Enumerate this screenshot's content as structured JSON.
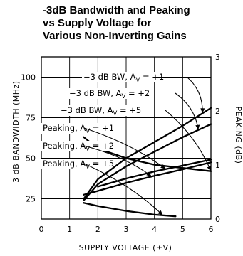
{
  "chart_data": {
    "type": "line",
    "title": [
      "-3dB Bandwidth and Peaking",
      "vs Supply Voltage for",
      "Various Non-Inverting Gains"
    ],
    "xlabel": "SUPPLY VOLTAGE (±V)",
    "ylabel": "−3 dB BANDWIDTH (MHz)",
    "y2label": "PEAKING (dB)",
    "xlim": [
      0,
      6
    ],
    "ylim": [
      12.5,
      112.5
    ],
    "y2lim": [
      0,
      3
    ],
    "xticks": [
      "0",
      "1",
      "2",
      "3",
      "4",
      "5",
      "6"
    ],
    "yticks": [
      "25",
      "50",
      "75",
      "100"
    ],
    "y2ticks": [
      "0",
      "1",
      "2",
      "3"
    ],
    "grid": true,
    "series": [
      {
        "name": "−3 dB BW, AV = +1",
        "axis": "left",
        "x": [
          1.5,
          2,
          3,
          4,
          5,
          6
        ],
        "y": [
          25,
          37,
          50,
          60,
          70,
          81
        ]
      },
      {
        "name": "−3 dB BW, AV = +2",
        "axis": "left",
        "x": [
          1.5,
          2,
          3,
          4,
          5,
          6
        ],
        "y": [
          24,
          34,
          45,
          54,
          63,
          71
        ]
      },
      {
        "name": "−3 dB BW, AV = +5",
        "axis": "left",
        "x": [
          1.5,
          2,
          3,
          4,
          5,
          6
        ],
        "y": [
          63,
          56,
          50,
          46,
          44,
          42
        ]
      },
      {
        "name": "Peaking, AV = +1",
        "axis": "right",
        "x": [
          2,
          3,
          4,
          5,
          6
        ],
        "y": [
          0.6,
          0.75,
          0.88,
          0.99,
          1.1
        ]
      },
      {
        "name": "Peaking, AV = +2",
        "axis": "right",
        "x": [
          1.5,
          2,
          3,
          4,
          5,
          6
        ],
        "y": [
          0.45,
          0.52,
          0.67,
          0.8,
          0.92,
          1.05
        ]
      },
      {
        "name": "Peaking, AV = +5",
        "axis": "right",
        "x": [
          1.5,
          2,
          3,
          4,
          4.75
        ],
        "y": [
          0.3,
          0.24,
          0.15,
          0.08,
          0.05
        ]
      }
    ],
    "annotations": [
      {
        "text": "−3 dB BW, A",
        "sub": "V",
        "rest": " = +1",
        "series": 0,
        "target_x": 5.7
      },
      {
        "text": "−3 dB BW, A",
        "sub": "V",
        "rest": " = +2",
        "series": 1,
        "target_x": 5.55
      },
      {
        "text": "−3 dB BW, A",
        "sub": "V",
        "rest": " = +5",
        "series": 2,
        "target_x": 6.0
      },
      {
        "text": "Peaking, A",
        "sub": "V",
        "rest": " = +1",
        "series": 3,
        "target_x": 4.4
      },
      {
        "text": "Peaking, A",
        "sub": "V",
        "rest": " = +2",
        "series": 4,
        "target_x": 3.9
      },
      {
        "text": "Peaking, A",
        "sub": "V",
        "rest": " = +5",
        "series": 5,
        "target_x": 4.3
      }
    ]
  }
}
